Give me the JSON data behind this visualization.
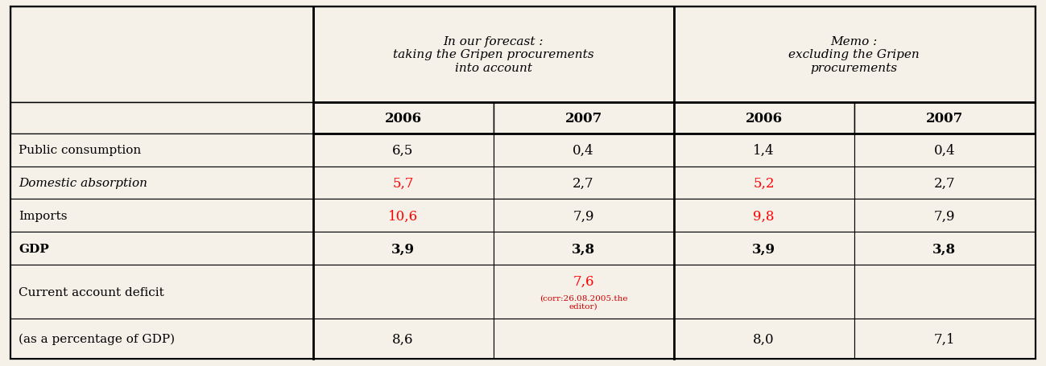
{
  "col_header_top_left": "In our forecast :\ntaking the Gripen procurements\ninto account",
  "col_header_top_right": "Memo :\nexcluding the Gripen\nprocurements",
  "col_header_years": [
    "2006",
    "2007",
    "2006",
    "2007"
  ],
  "rows": [
    {
      "label": "Public consumption",
      "label_bold": false,
      "label_italic": false,
      "values": [
        "6,5",
        "0,4",
        "1,4",
        "0,4"
      ],
      "colors": [
        "black",
        "black",
        "black",
        "black"
      ]
    },
    {
      "label": "Domestic absorption",
      "label_bold": false,
      "label_italic": true,
      "values": [
        "5,7",
        "2,7",
        "5,2",
        "2,7"
      ],
      "colors": [
        "red",
        "black",
        "red",
        "black"
      ]
    },
    {
      "label": "Imports",
      "label_bold": false,
      "label_italic": false,
      "values": [
        "10,6",
        "7,9",
        "9,8",
        "7,9"
      ],
      "colors": [
        "red",
        "black",
        "red",
        "black"
      ]
    },
    {
      "label": "GDP",
      "label_bold": true,
      "label_italic": false,
      "values": [
        "3,9",
        "3,8",
        "3,9",
        "3,8"
      ],
      "colors": [
        "black",
        "black",
        "black",
        "black"
      ],
      "values_bold": true
    },
    {
      "label": "Current account deficit",
      "label_bold": false,
      "label_italic": false,
      "values": [
        "",
        "7,6",
        "",
        ""
      ],
      "colors": [
        "black",
        "red",
        "black",
        "black"
      ],
      "annotation": "(corr:26.08.2005.the\neditor)",
      "annotation_col": 1
    },
    {
      "label": "(as a percentage of GDP)",
      "label_bold": false,
      "label_italic": false,
      "values": [
        "8,6",
        "",
        "8,0",
        "7,1"
      ],
      "colors": [
        "black",
        "black",
        "black",
        "black"
      ]
    }
  ],
  "bg_color": "#f5f0e8",
  "red_color": "#cc0000"
}
